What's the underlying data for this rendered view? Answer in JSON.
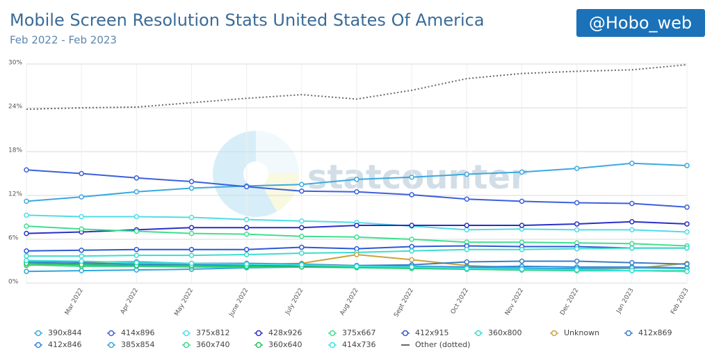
{
  "chart_data": {
    "type": "line",
    "title": "Mobile Screen Resolution Stats United States Of America",
    "subtitle": "Feb 2022 - Feb 2023",
    "badge": "@Hobo_web",
    "watermark": "statcounter",
    "categories": [
      null,
      "Mar 2022",
      "Apr 2022",
      "May 2022",
      "June 2022",
      "July 2022",
      "Aug 2022",
      "Sept 2022",
      "Oct 2022",
      "Nov 2022",
      "Dec 2022",
      "Jan 2023",
      "Feb 2023"
    ],
    "ylim": [
      0,
      30
    ],
    "yticks": [
      {
        "value": 0,
        "label": "0%"
      },
      {
        "value": 6,
        "label": "6%"
      },
      {
        "value": 12,
        "label": "12%"
      },
      {
        "value": 18,
        "label": "18%"
      },
      {
        "value": 24,
        "label": "24%"
      },
      {
        "value": 30,
        "label": "30%"
      }
    ],
    "grid": true,
    "series": [
      {
        "name": "390x844",
        "color": "#3aa9df",
        "values": [
          11.2,
          11.8,
          12.5,
          13.0,
          13.3,
          13.5,
          14.2,
          14.5,
          14.9,
          15.2,
          15.7,
          16.4,
          16.1
        ]
      },
      {
        "name": "414x896",
        "color": "#3d5fdc",
        "values": [
          15.5,
          15.0,
          14.4,
          13.9,
          13.2,
          12.6,
          12.5,
          12.1,
          11.5,
          11.2,
          11.0,
          10.9,
          10.4
        ]
      },
      {
        "name": "375x812",
        "color": "#4fdde6",
        "values": [
          9.3,
          9.1,
          9.1,
          9.0,
          8.7,
          8.5,
          8.3,
          7.8,
          7.3,
          7.4,
          7.3,
          7.3,
          7.0
        ]
      },
      {
        "name": "428x926",
        "color": "#2a2fc6",
        "values": [
          6.8,
          7.0,
          7.3,
          7.6,
          7.6,
          7.6,
          7.9,
          7.9,
          7.9,
          7.9,
          8.1,
          8.4,
          8.1
        ]
      },
      {
        "name": "375x667",
        "color": "#3fdf8f",
        "values": [
          7.8,
          7.4,
          7.1,
          6.8,
          6.7,
          6.4,
          6.3,
          6.0,
          5.6,
          5.6,
          5.5,
          5.4,
          5.1
        ]
      },
      {
        "name": "412x915",
        "color": "#2d58d4",
        "values": [
          4.4,
          4.5,
          4.6,
          4.6,
          4.6,
          4.9,
          4.7,
          5.0,
          5.1,
          5.0,
          5.0,
          4.8,
          4.8
        ]
      },
      {
        "name": "360x800",
        "color": "#3cdccf",
        "values": [
          3.7,
          3.7,
          3.8,
          3.8,
          3.9,
          4.1,
          4.2,
          4.4,
          4.6,
          4.6,
          4.7,
          4.8,
          4.8
        ]
      },
      {
        "name": "Unknown",
        "color": "#c8a43c",
        "values": [
          2.4,
          2.8,
          2.6,
          2.6,
          2.5,
          2.7,
          3.9,
          3.2,
          2.4,
          2.1,
          1.9,
          2.0,
          2.7
        ]
      },
      {
        "name": "412x869",
        "color": "#3a7cc4",
        "values": [
          3.0,
          2.9,
          2.9,
          2.7,
          2.7,
          2.6,
          2.4,
          2.5,
          2.9,
          3.0,
          3.0,
          2.8,
          2.6
        ]
      },
      {
        "name": "412x846",
        "color": "#2f86d8",
        "values": [
          2.8,
          2.7,
          2.6,
          2.5,
          2.5,
          2.3,
          2.4,
          2.3,
          2.2,
          2.3,
          2.2,
          2.2,
          2.1
        ]
      },
      {
        "name": "385x854",
        "color": "#2fa6dd",
        "values": [
          1.6,
          1.7,
          1.8,
          1.9,
          2.1,
          2.2,
          2.3,
          2.2,
          2.1,
          2.0,
          2.0,
          2.1,
          2.0
        ]
      },
      {
        "name": "360x740",
        "color": "#3bd68a",
        "values": [
          2.5,
          2.3,
          2.3,
          2.2,
          2.2,
          2.2,
          2.1,
          2.0,
          1.9,
          1.8,
          1.8,
          1.7,
          1.7
        ]
      },
      {
        "name": "360x640",
        "color": "#22c55e",
        "values": [
          2.7,
          2.5,
          2.4,
          2.4,
          2.3,
          2.2,
          2.2,
          2.1,
          1.9,
          1.8,
          1.7,
          1.7,
          1.6
        ]
      },
      {
        "name": "414x736",
        "color": "#39e3dd",
        "values": [
          3.1,
          3.0,
          2.8,
          2.7,
          2.6,
          2.5,
          2.3,
          2.2,
          2.0,
          1.9,
          1.8,
          1.7,
          1.6
        ]
      },
      {
        "name": "Other (dotted)",
        "color": "#666666",
        "style": "dotted",
        "values": [
          23.8,
          24.0,
          24.1,
          24.7,
          25.3,
          25.8,
          25.2,
          26.4,
          28.0,
          28.7,
          29.0,
          29.2,
          29.9
        ]
      }
    ]
  }
}
